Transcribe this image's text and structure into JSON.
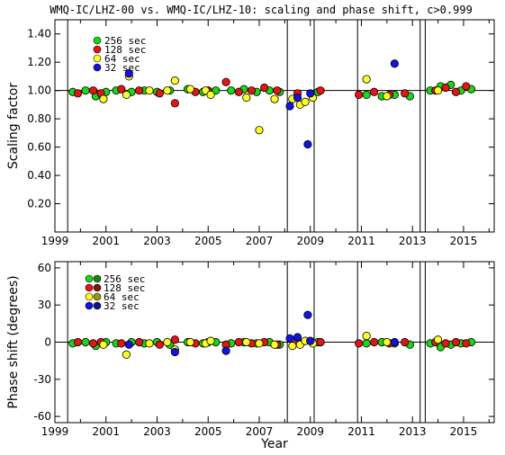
{
  "title": "WMQ-IC/LHZ-00 vs. WMQ-IC/LHZ-10: scaling and phase shift, c>0.999",
  "xlabel": "Year",
  "colors": {
    "256": "#11dd11",
    "128": "#ee1111",
    "64": "#ffff22",
    "32": "#1111ee",
    "dark_256": "#118811",
    "dark_128": "#881111",
    "dark_64": "#999911",
    "dark_32": "#111188"
  },
  "chart_data": [
    {
      "type": "scatter",
      "panel": "top",
      "ylabel": "Scaling factor",
      "xlim": [
        1999.0,
        2016.2
      ],
      "ylim": [
        0.0,
        1.5
      ],
      "xticks": [
        1999,
        2001,
        2003,
        2005,
        2007,
        2009,
        2011,
        2013,
        2015
      ],
      "yticks": [
        0.2,
        0.4,
        0.6,
        0.8,
        1.0,
        1.2,
        1.4
      ],
      "ytick_labels": [
        "0.20",
        "0.40",
        "0.60",
        "0.80",
        "1.00",
        "1.20",
        "1.40"
      ],
      "reference_line": 1.0,
      "event_lines": [
        1999.5,
        2008.1,
        2009.15,
        2010.85,
        2013.3,
        2013.5
      ],
      "legend": {
        "position": "top-left",
        "entries": [
          "256 sec",
          "128 sec",
          "64 sec",
          "32 sec"
        ]
      },
      "series": [
        {
          "name": "256 sec",
          "color_key": "256",
          "points": [
            [
              1999.7,
              0.99
            ],
            [
              2000.2,
              1.0
            ],
            [
              2000.6,
              0.96
            ],
            [
              2001.0,
              0.99
            ],
            [
              2001.4,
              1.0
            ],
            [
              2002.0,
              0.99
            ],
            [
              2002.5,
              1.0
            ],
            [
              2003.0,
              0.99
            ],
            [
              2003.5,
              1.0
            ],
            [
              2004.2,
              1.01
            ],
            [
              2004.8,
              0.99
            ],
            [
              2005.3,
              1.0
            ],
            [
              2005.9,
              1.0
            ],
            [
              2006.4,
              1.01
            ],
            [
              2006.9,
              0.99
            ],
            [
              2007.4,
              1.0
            ],
            [
              2007.8,
              0.99
            ],
            [
              2009.3,
              0.99
            ],
            [
              2011.2,
              0.97
            ],
            [
              2011.8,
              0.96
            ],
            [
              2012.3,
              0.97
            ],
            [
              2012.9,
              0.96
            ],
            [
              2013.7,
              1.0
            ],
            [
              2014.1,
              1.03
            ],
            [
              2014.5,
              1.04
            ],
            [
              2014.9,
              1.0
            ],
            [
              2015.3,
              1.01
            ]
          ]
        },
        {
          "name": "128 sec",
          "color_key": "128",
          "points": [
            [
              1999.9,
              0.98
            ],
            [
              2000.5,
              1.0
            ],
            [
              2000.8,
              0.98
            ],
            [
              2001.6,
              1.01
            ],
            [
              2002.3,
              1.0
            ],
            [
              2003.1,
              0.98
            ],
            [
              2003.7,
              0.91
            ],
            [
              2004.5,
              0.99
            ],
            [
              2005.0,
              1.0
            ],
            [
              2005.7,
              1.06
            ],
            [
              2006.2,
              0.99
            ],
            [
              2006.7,
              1.0
            ],
            [
              2007.2,
              1.02
            ],
            [
              2007.7,
              1.0
            ],
            [
              2008.5,
              0.98
            ],
            [
              2009.4,
              1.0
            ],
            [
              2010.9,
              0.97
            ],
            [
              2011.5,
              0.99
            ],
            [
              2012.1,
              0.97
            ],
            [
              2012.7,
              0.98
            ],
            [
              2013.9,
              1.0
            ],
            [
              2014.3,
              1.02
            ],
            [
              2014.7,
              0.99
            ],
            [
              2015.1,
              1.03
            ]
          ]
        },
        {
          "name": "64 sec",
          "color_key": "64",
          "points": [
            [
              2000.9,
              0.94
            ],
            [
              2001.8,
              0.97
            ],
            [
              2001.9,
              1.1
            ],
            [
              2002.7,
              1.0
            ],
            [
              2003.4,
              1.0
            ],
            [
              2003.7,
              1.07
            ],
            [
              2004.3,
              1.01
            ],
            [
              2004.9,
              1.0
            ],
            [
              2005.1,
              0.97
            ],
            [
              2006.5,
              0.95
            ],
            [
              2007.0,
              0.72
            ],
            [
              2007.6,
              0.94
            ],
            [
              2008.3,
              0.94
            ],
            [
              2008.6,
              0.9
            ],
            [
              2008.8,
              0.92
            ],
            [
              2009.1,
              0.95
            ],
            [
              2011.2,
              1.08
            ],
            [
              2012.0,
              0.96
            ],
            [
              2014.0,
              1.0
            ]
          ]
        },
        {
          "name": "32 sec",
          "color_key": "32",
          "points": [
            [
              2001.9,
              1.12
            ],
            [
              2008.2,
              0.89
            ],
            [
              2008.5,
              0.95
            ],
            [
              2008.9,
              0.62
            ],
            [
              2009.0,
              0.98
            ],
            [
              2012.3,
              1.19
            ]
          ]
        }
      ]
    },
    {
      "type": "scatter",
      "panel": "bottom",
      "ylabel": "Phase shift (degrees)",
      "xlabel": "Year",
      "xlim": [
        1999.0,
        2016.2
      ],
      "ylim": [
        -65,
        65
      ],
      "xticks": [
        1999,
        2001,
        2003,
        2005,
        2007,
        2009,
        2011,
        2013,
        2015
      ],
      "yticks": [
        -60,
        -30,
        0,
        30,
        60
      ],
      "ytick_labels": [
        "-60",
        "-30",
        "0",
        "30",
        "60"
      ],
      "reference_line": 0,
      "event_lines": [
        1999.5,
        2008.1,
        2009.15,
        2010.85,
        2013.3,
        2013.5
      ],
      "legend": {
        "position": "top-left",
        "entries": [
          "256 sec",
          "128 sec",
          "64 sec",
          "32 sec"
        ]
      },
      "series": [
        {
          "name": "256 sec",
          "color_key": "256",
          "points": [
            [
              1999.7,
              -1
            ],
            [
              2000.2,
              0
            ],
            [
              2000.6,
              -3
            ],
            [
              2001.0,
              0
            ],
            [
              2001.4,
              -1
            ],
            [
              2002.0,
              0
            ],
            [
              2002.5,
              -1
            ],
            [
              2003.0,
              0
            ],
            [
              2003.5,
              -2
            ],
            [
              2004.2,
              0
            ],
            [
              2004.8,
              -1
            ],
            [
              2005.3,
              0
            ],
            [
              2005.9,
              -1
            ],
            [
              2006.4,
              0
            ],
            [
              2006.9,
              -1
            ],
            [
              2007.4,
              0
            ],
            [
              2007.8,
              -2
            ],
            [
              2009.3,
              0
            ],
            [
              2011.2,
              -1
            ],
            [
              2011.8,
              0
            ],
            [
              2012.3,
              -1
            ],
            [
              2012.9,
              -2
            ],
            [
              2013.7,
              -1
            ],
            [
              2014.1,
              -4
            ],
            [
              2014.5,
              -2
            ],
            [
              2014.9,
              -1
            ],
            [
              2015.3,
              0
            ]
          ]
        },
        {
          "name": "128 sec",
          "color_key": "128",
          "points": [
            [
              1999.9,
              0
            ],
            [
              2000.5,
              -1
            ],
            [
              2000.8,
              0
            ],
            [
              2001.6,
              -1
            ],
            [
              2002.3,
              0
            ],
            [
              2003.1,
              -2
            ],
            [
              2003.7,
              2
            ],
            [
              2004.5,
              -1
            ],
            [
              2005.0,
              0
            ],
            [
              2005.7,
              -2
            ],
            [
              2006.2,
              0
            ],
            [
              2006.7,
              -1
            ],
            [
              2007.2,
              0
            ],
            [
              2007.7,
              -2
            ],
            [
              2008.5,
              0
            ],
            [
              2009.4,
              0
            ],
            [
              2010.9,
              -1
            ],
            [
              2011.5,
              0
            ],
            [
              2012.1,
              -1
            ],
            [
              2012.7,
              0
            ],
            [
              2013.9,
              0
            ],
            [
              2014.3,
              -1
            ],
            [
              2014.7,
              0
            ],
            [
              2015.1,
              -1
            ]
          ]
        },
        {
          "name": "64 sec",
          "color_key": "64",
          "points": [
            [
              2000.9,
              -2
            ],
            [
              2001.8,
              -10
            ],
            [
              2002.7,
              -1
            ],
            [
              2003.4,
              0
            ],
            [
              2003.7,
              -6
            ],
            [
              2004.3,
              0
            ],
            [
              2004.9,
              -1
            ],
            [
              2005.1,
              1
            ],
            [
              2006.5,
              0
            ],
            [
              2007.0,
              -1
            ],
            [
              2007.6,
              -2
            ],
            [
              2008.3,
              -3
            ],
            [
              2008.6,
              -2
            ],
            [
              2008.8,
              1
            ],
            [
              2009.1,
              -1
            ],
            [
              2011.2,
              5
            ],
            [
              2012.0,
              0
            ],
            [
              2014.0,
              2
            ]
          ]
        },
        {
          "name": "32 sec",
          "color_key": "32",
          "points": [
            [
              2001.9,
              -2
            ],
            [
              2003.7,
              -8
            ],
            [
              2005.7,
              -7
            ],
            [
              2008.2,
              3
            ],
            [
              2008.5,
              4
            ],
            [
              2008.9,
              22
            ],
            [
              2009.0,
              1
            ],
            [
              2012.3,
              0
            ]
          ]
        }
      ]
    }
  ]
}
